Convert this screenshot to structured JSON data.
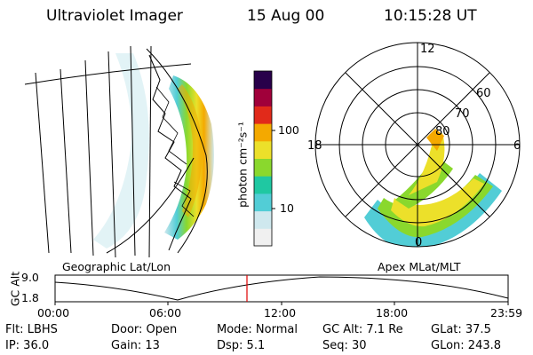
{
  "header": {
    "title": "Ultraviolet Imager",
    "date": "15 Aug 00",
    "time": "10:15:28 UT"
  },
  "colorbar": {
    "unit_label": "photon cm⁻²s⁻¹",
    "ticks": [
      "100",
      "10"
    ],
    "colors": [
      "#f0f0f0",
      "#cfe8ee",
      "#52cdd6",
      "#1fc8a2",
      "#8ad82d",
      "#ece02a",
      "#f4a900",
      "#e12a1a",
      "#a0003a",
      "#28004a"
    ]
  },
  "left_panel": {
    "label": "Geographic Lat/Lon"
  },
  "right_panel": {
    "label": "Apex  MLat/MLT",
    "mlt_labels": {
      "top": "12",
      "left": "18",
      "right": "6",
      "bottom": "0"
    },
    "lat_labels": [
      "60",
      "70",
      "80"
    ]
  },
  "altitude_plot": {
    "ylabel": "GC Alt",
    "y_ticks": [
      "9.0",
      "1.8"
    ],
    "x_ticks": [
      "00:00",
      "06:00",
      "12:00",
      "18:00",
      "23:59"
    ],
    "marker_color": "#e00000"
  },
  "info": {
    "flt": "Flt: LBHS",
    "ip": "IP: 36.0",
    "door": "Door: Open",
    "gain": "Gain: 13",
    "mode": "Mode: Normal",
    "dsp": "Dsp:     5.1",
    "gcalt": "GC Alt: 7.1 Re",
    "seq": "Seq: 30",
    "glat": "GLat:  37.5",
    "glon": "GLon: 243.8"
  }
}
